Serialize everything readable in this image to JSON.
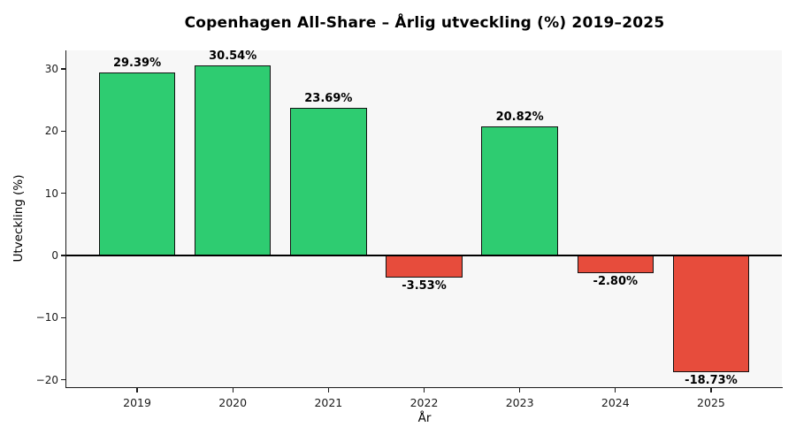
{
  "chart_data": {
    "type": "bar",
    "title": "Copenhagen All-Share – Årlig utveckling (%) 2019–2025",
    "xlabel": "År",
    "ylabel": "Utveckling (%)",
    "categories": [
      "2019",
      "2020",
      "2021",
      "2022",
      "2023",
      "2024",
      "2025"
    ],
    "values": [
      29.39,
      30.54,
      23.69,
      -3.53,
      20.82,
      -2.8,
      -18.73
    ],
    "bar_labels": [
      "29.39%",
      "30.54%",
      "23.69%",
      "-3.53%",
      "20.82%",
      "-2.80%",
      "-18.73%"
    ],
    "yticks": [
      30,
      20,
      10,
      0,
      -10,
      -20
    ],
    "ytick_labels": [
      "30",
      "20",
      "10",
      "0",
      "−10",
      "−20"
    ],
    "ylim": [
      -21.2,
      33.0
    ],
    "xlim": [
      -0.74,
      6.74
    ],
    "bar_width": 0.8,
    "grid": false,
    "legend": null,
    "zero_line": true,
    "positive_color": "#2ecc71",
    "negative_color": "#e74c3c",
    "bar_edge_color": "#111111",
    "plot_background": "#f7f7f7",
    "figure_background": "#ffffff",
    "spine_color": "#1a1a1a"
  }
}
